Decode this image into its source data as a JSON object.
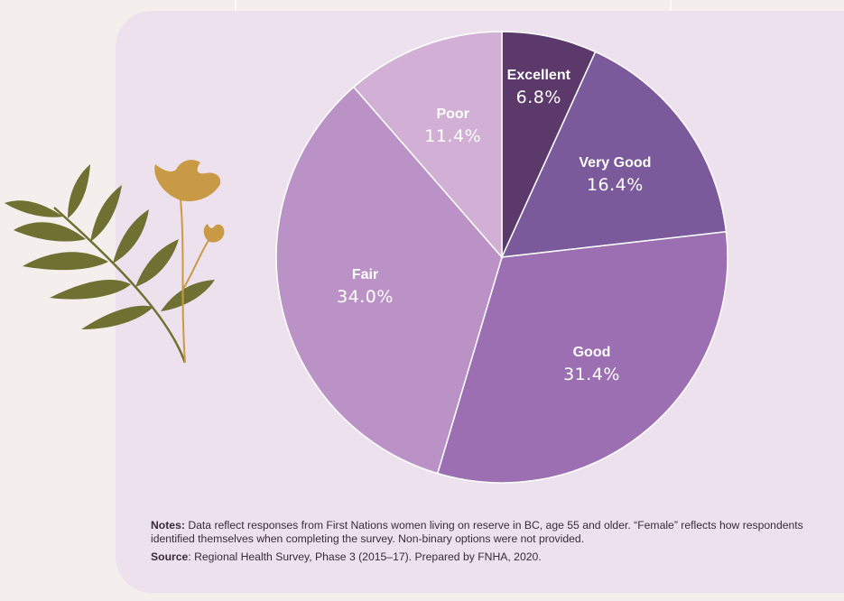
{
  "chart_data": {
    "type": "pie",
    "title": "",
    "slices": [
      {
        "label": "Excellent",
        "value": 6.8,
        "display": "6.8%",
        "color": "#5b3a6b"
      },
      {
        "label": "Very Good",
        "value": 16.4,
        "display": "16.4%",
        "color": "#7a5a9a"
      },
      {
        "label": "Good",
        "value": 31.4,
        "display": "31.4%",
        "color": "#9b6fb1"
      },
      {
        "label": "Fair",
        "value": 34.0,
        "display": "34.0%",
        "color": "#ba92c6"
      },
      {
        "label": "Poor",
        "value": 11.4,
        "display": "11.4%",
        "color": "#d2afd5"
      }
    ],
    "start": "12 o'clock",
    "direction": "clockwise"
  },
  "notes": {
    "notes_label": "Notes:",
    "notes_text": "Data reflect responses from First Nations women living on reserve in BC, age 55 and older. “Female” reflects how respondents identified themselves when completing the survey. Non-binary options were not provided.",
    "source_label": "Source",
    "source_text": ": Regional Health Survey, Phase 3 (2015–17). Prepared by FNHA, 2020."
  },
  "colors": {
    "background": "#f4efec",
    "panel": "#ede1ee",
    "leaf": "#6f7132",
    "flower": "#c99a45"
  },
  "decoration": "plant-illustration"
}
